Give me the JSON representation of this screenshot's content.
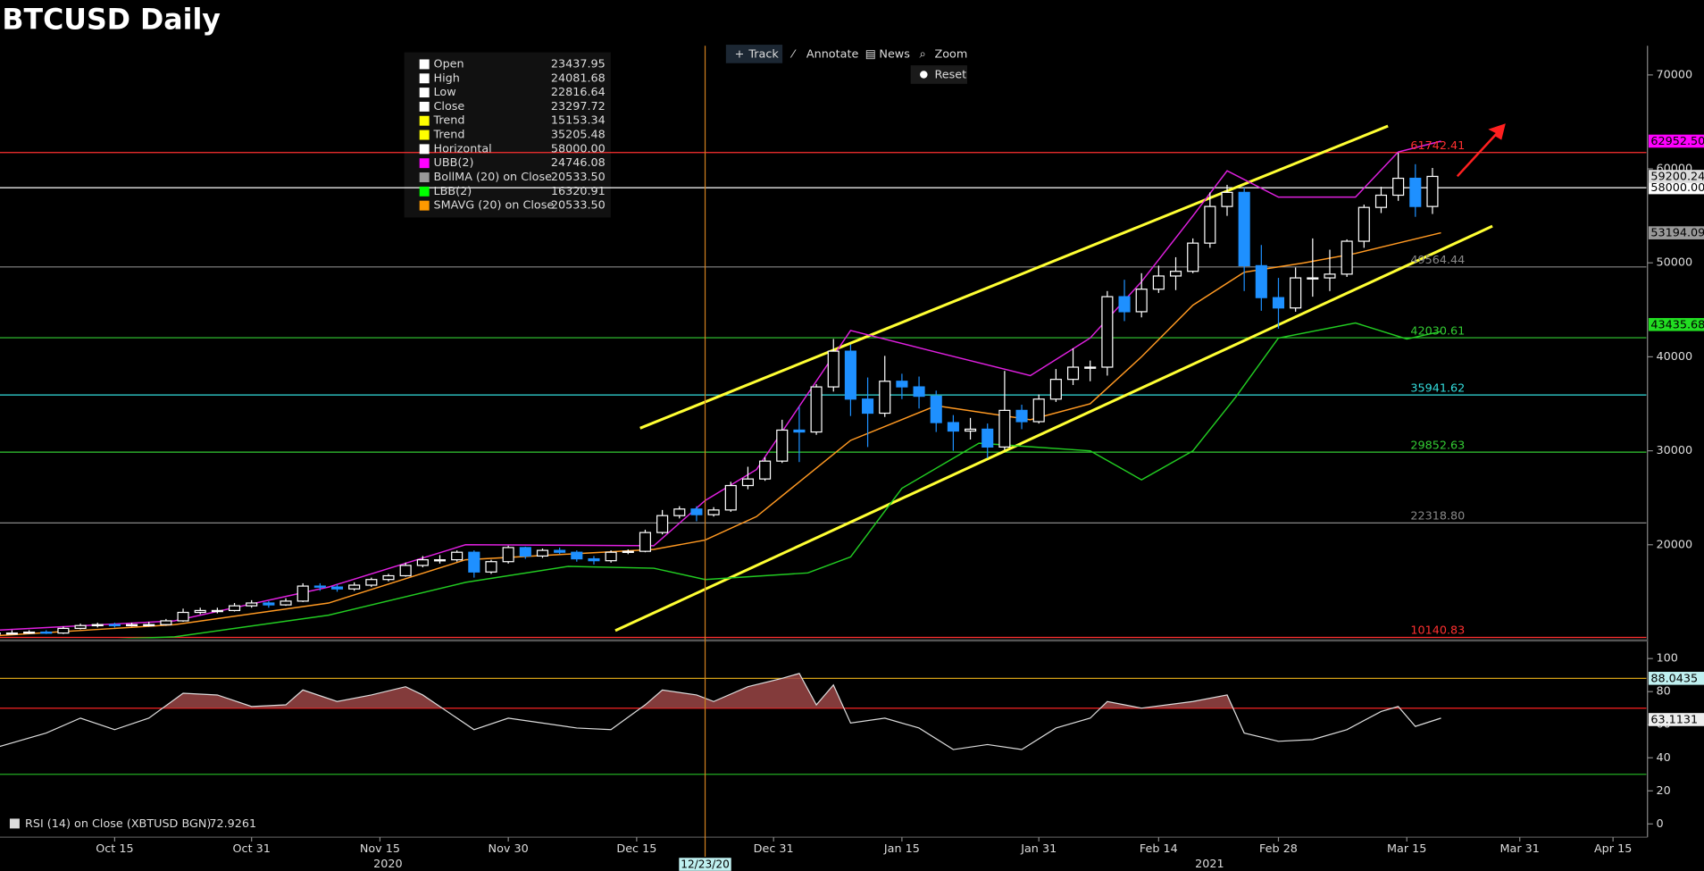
{
  "title": "BTCUSD Daily",
  "toolbar": [
    "Track",
    "Annotate",
    "News",
    "Zoom"
  ],
  "reset": "Reset",
  "legend": [
    {
      "name": "Open",
      "value": "23437.95",
      "color": "#ffffff"
    },
    {
      "name": "High",
      "value": "24081.68",
      "color": "#ffffff"
    },
    {
      "name": "Low",
      "value": "22816.64",
      "color": "#ffffff"
    },
    {
      "name": "Close",
      "value": "23297.72",
      "color": "#ffffff"
    },
    {
      "name": "Trend",
      "value": "15153.34",
      "color": "#ffff00"
    },
    {
      "name": "Trend",
      "value": "35205.48",
      "color": "#ffff00"
    },
    {
      "name": "Horizontal",
      "value": "58000.00",
      "color": "#ffffff"
    },
    {
      "name": "UBB(2)",
      "value": "24746.08",
      "color": "#ff00ff"
    },
    {
      "name": "BollMA (20)  on Close",
      "value": "20533.50",
      "color": "#999999"
    },
    {
      "name": "LBB(2)",
      "value": "16320.91",
      "color": "#00ff00"
    },
    {
      "name": "SMAVG (20)  on Close",
      "value": "20533.50",
      "color": "#ff9900"
    }
  ],
  "chart_data": [
    {
      "type": "candlestick",
      "xlim": [
        0.6,
        193
      ],
      "xticks": [
        {
          "value": 14,
          "label": "Oct 15"
        },
        {
          "value": 30,
          "label": "Oct 31"
        },
        {
          "value": 45,
          "label": "Nov 15"
        },
        {
          "value": 60,
          "label": "Nov 30"
        },
        {
          "value": 75,
          "label": "Dec 15"
        },
        {
          "value": 91,
          "label": "Dec 31"
        },
        {
          "value": 106,
          "label": "Jan 15"
        },
        {
          "value": 122,
          "label": "Jan 31"
        },
        {
          "value": 136,
          "label": "Feb 14"
        },
        {
          "value": 150,
          "label": "Feb 28"
        },
        {
          "value": 165,
          "label": "Mar 15"
        },
        {
          "value": 178.2,
          "label": "Mar 31"
        },
        {
          "value": 189.1,
          "label": "Apr 15"
        }
      ],
      "years": [
        "2020",
        "2021"
      ],
      "ylim": [
        10050,
        73100
      ],
      "yticks": [
        20000,
        30000,
        40000,
        50000,
        60000,
        70000
      ],
      "up_color": "#ffffff",
      "down_color": "#1e90ff",
      "candles": {
        "x": [
          0,
          2,
          4,
          6,
          8,
          10,
          12,
          14,
          16,
          18,
          20,
          22,
          24,
          26,
          28,
          30,
          32,
          34,
          36,
          38,
          40,
          42,
          44,
          46,
          48,
          50,
          52,
          54,
          56,
          58,
          60,
          62,
          64,
          66,
          68,
          70,
          72,
          74,
          76,
          78,
          80,
          82,
          84,
          86,
          88,
          90,
          92,
          94,
          96,
          98,
          100,
          102,
          104,
          106,
          108,
          110,
          112,
          114,
          116,
          118,
          120,
          122,
          124,
          126,
          128,
          130,
          132,
          134,
          136,
          138,
          140,
          142,
          144,
          146,
          148,
          150,
          152,
          154,
          156,
          158,
          160,
          162,
          164,
          166,
          168
        ],
        "open": [
          10500,
          10600,
          10600,
          10700,
          10600,
          11100,
          11400,
          11500,
          11400,
          11500,
          11500,
          11900,
          12800,
          13000,
          13000,
          13500,
          13800,
          13600,
          14000,
          15600,
          15500,
          15300,
          15700,
          16300,
          16700,
          17800,
          18400,
          18400,
          19200,
          17100,
          18200,
          19700,
          18800,
          19400,
          19200,
          18500,
          18300,
          19200,
          19300,
          21300,
          23100,
          23800,
          23200,
          23700,
          26300,
          27000,
          28900,
          32200,
          32000,
          36800,
          40600,
          35500,
          34000,
          37400,
          36800,
          35800,
          33000,
          32100,
          32300,
          30400,
          34300,
          33100,
          35500,
          37600,
          38900,
          38900,
          46400,
          44800,
          47200,
          48600,
          49100,
          52100,
          56000,
          57500,
          49700,
          46300,
          45200,
          48400,
          48400,
          48800,
          52300,
          55900,
          57200,
          59000,
          56000
        ],
        "high": [
          10800,
          10900,
          10900,
          10900,
          11300,
          11600,
          11700,
          11700,
          11700,
          11800,
          12100,
          13200,
          13300,
          13300,
          13800,
          14100,
          14000,
          14300,
          15900,
          15900,
          15800,
          16000,
          16500,
          16900,
          18100,
          18800,
          18900,
          19400,
          19400,
          18400,
          19900,
          19800,
          19600,
          19700,
          19400,
          18800,
          19400,
          19500,
          21600,
          23700,
          24100,
          24100,
          24000,
          26700,
          28300,
          29300,
          33300,
          34700,
          37100,
          41900,
          41300,
          37800,
          40100,
          38200,
          37900,
          36400,
          33800,
          33500,
          32900,
          38500,
          34900,
          36000,
          38700,
          40900,
          39600,
          47000,
          48200,
          48900,
          49700,
          50600,
          52600,
          57500,
          58300,
          58000,
          51900,
          48400,
          49500,
          52600,
          51400,
          52500,
          56200,
          58100,
          61700,
          60500,
          60100
        ],
        "low": [
          10400,
          10500,
          10500,
          10500,
          10500,
          11000,
          11200,
          11200,
          11300,
          11300,
          11400,
          11800,
          12600,
          12700,
          12900,
          13300,
          13300,
          13500,
          13900,
          15100,
          15000,
          15100,
          15500,
          16100,
          16600,
          17600,
          18000,
          18200,
          16500,
          16900,
          18000,
          18500,
          18600,
          19000,
          18200,
          17900,
          18100,
          19000,
          19200,
          21100,
          22800,
          22500,
          23000,
          23500,
          25900,
          26800,
          28700,
          28800,
          31700,
          36300,
          33700,
          30400,
          33600,
          35500,
          34500,
          32000,
          30000,
          31200,
          29200,
          30100,
          32300,
          32900,
          35200,
          37000,
          37400,
          38000,
          43800,
          44200,
          46800,
          47100,
          48900,
          51600,
          55000,
          47000,
          44900,
          43000,
          44800,
          46400,
          47000,
          48500,
          51600,
          55300,
          56600,
          54900,
          55200
        ],
        "close": [
          10600,
          10600,
          10700,
          10600,
          11100,
          11400,
          11500,
          11400,
          11500,
          11500,
          11900,
          12800,
          13000,
          13000,
          13500,
          13800,
          13600,
          14000,
          15600,
          15500,
          15300,
          15700,
          16300,
          16700,
          17800,
          18400,
          18400,
          19200,
          17100,
          18200,
          19700,
          18800,
          19400,
          19200,
          18500,
          18300,
          19200,
          19300,
          21300,
          23100,
          23800,
          23200,
          23700,
          26300,
          27000,
          28900,
          32200,
          32000,
          36800,
          40600,
          35500,
          34000,
          37400,
          36800,
          35800,
          33000,
          32100,
          32300,
          30400,
          34300,
          33100,
          35500,
          37600,
          38900,
          38900,
          46400,
          44800,
          47200,
          48600,
          49100,
          52100,
          56000,
          57500,
          49700,
          46300,
          45200,
          48400,
          48400,
          48800,
          52300,
          55900,
          57200,
          59000,
          56000,
          59200
        ]
      },
      "series": [
        {
          "name": "UBB(2)",
          "color": "#e020e0",
          "x": [
            0,
            21,
            39,
            55,
            77,
            83,
            89,
            100,
            110,
            121,
            128,
            134,
            140,
            144,
            150,
            159,
            164,
            169
          ],
          "values": [
            10900,
            11900,
            15500,
            20000,
            19900,
            24700,
            28000,
            42800,
            40500,
            38000,
            42000,
            48000,
            55000,
            59800,
            57000,
            57000,
            61800,
            62950
          ]
        },
        {
          "name": "SMAVG (20)",
          "color": "#ff9922",
          "x": [
            0,
            21,
            39,
            55,
            77,
            83,
            89,
            100,
            110,
            121,
            128,
            134,
            140,
            146,
            153,
            159,
            169
          ],
          "values": [
            10300,
            11500,
            13800,
            18400,
            19500,
            20500,
            23000,
            31100,
            34800,
            33300,
            35000,
            40000,
            45500,
            49000,
            50000,
            51000,
            53200
          ]
        },
        {
          "name": "LBB(2)",
          "color": "#22cc22",
          "x": [
            0,
            21,
            39,
            55,
            67,
            77,
            83,
            95,
            100,
            106,
            115,
            128,
            134,
            140,
            145,
            150,
            159,
            165,
            169
          ],
          "values": [
            9500,
            10200,
            12500,
            16000,
            17700,
            17500,
            16300,
            17000,
            18700,
            26000,
            30800,
            30000,
            26900,
            30000,
            35700,
            42000,
            43600,
            41900,
            42700
          ]
        }
      ],
      "trendlines": [
        {
          "color": "#ffff33",
          "x": [
            75.4,
            162.8
          ],
          "values": [
            32400,
            64560
          ]
        },
        {
          "color": "#ffff33",
          "x": [
            72.5,
            175
          ],
          "values": [
            10860,
            53910
          ]
        }
      ],
      "levels": [
        {
          "value": 61742.41,
          "label": "61742.41",
          "color": "#ff3030"
        },
        {
          "value": 58000,
          "label": "58000.00",
          "color": "#ffffff",
          "style": "box"
        },
        {
          "value": 49564.44,
          "label": "49564.44",
          "color": "#888888"
        },
        {
          "value": 42030.61,
          "label": "42030.61",
          "color": "#33cc33"
        },
        {
          "value": 35941.62,
          "label": "35941.62",
          "color": "#33dddd"
        },
        {
          "value": 29852.63,
          "label": "29852.63",
          "color": "#33cc33"
        },
        {
          "value": 22318.8,
          "label": "22318.80",
          "color": "#888888"
        },
        {
          "value": 10140.83,
          "label": "10140.83",
          "color": "#ff3030"
        }
      ],
      "last_values": [
        {
          "value": 62952.5,
          "label": "62952.50",
          "color": "#ff00ff"
        },
        {
          "value": 59200.24,
          "label": "59200.24",
          "color": "#dddddd"
        },
        {
          "value": 53194.09,
          "label": "53194.09",
          "color": "#999999"
        },
        {
          "value": 43435.68,
          "label": "43435.68",
          "color": "#22dd22"
        }
      ],
      "cursor": {
        "x": 83,
        "label": "12/23/20"
      }
    },
    {
      "type": "line",
      "name": "RSI (14)  on Close (XBTUSD BGN)",
      "legend_value": "72.9261",
      "color": "#dddddd",
      "x": [
        0,
        6,
        10,
        14,
        18,
        22,
        26,
        30,
        34,
        36,
        40,
        44,
        48,
        50,
        56,
        60,
        64,
        68,
        72,
        76,
        78,
        82,
        84,
        88,
        92,
        94,
        96,
        98,
        100,
        104,
        108,
        112,
        116,
        120,
        124,
        128,
        130,
        134,
        140,
        144,
        146,
        150,
        154,
        158,
        162,
        164,
        166,
        169
      ],
      "values": [
        46,
        55,
        64,
        57,
        64,
        79,
        78,
        71,
        72,
        81,
        74,
        78,
        83,
        78,
        57,
        64,
        61,
        58,
        57,
        72,
        81,
        78,
        74,
        83,
        88,
        91,
        72,
        84,
        61,
        64,
        58,
        45,
        48,
        45,
        58,
        64,
        74,
        70,
        74,
        78,
        55,
        50,
        51,
        57,
        68,
        71,
        59,
        64
      ],
      "ylim": [
        -8,
        109
      ],
      "yticks": [
        0,
        20,
        40,
        60,
        80,
        100
      ],
      "levels": [
        {
          "value": 88,
          "color": "#d4a017"
        },
        {
          "value": 70,
          "color": "#ff2020",
          "fill": "#9a4545"
        },
        {
          "value": 30,
          "color": "#22aa22"
        }
      ],
      "last_values": [
        {
          "value": 88.0435,
          "label": "88.0435",
          "color": "#bff0f0"
        },
        {
          "value": 63.1131,
          "label": "63.1131",
          "color": "#eeeeee"
        }
      ]
    }
  ]
}
